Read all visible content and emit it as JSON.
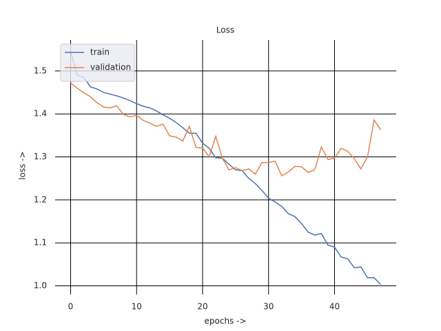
{
  "chart_data": {
    "type": "line",
    "title": "Loss",
    "x_label": "epochs ->",
    "y_label": "loss ->",
    "x": [
      0,
      1,
      2,
      3,
      4,
      5,
      6,
      7,
      8,
      9,
      10,
      11,
      12,
      13,
      14,
      15,
      16,
      17,
      18,
      19,
      20,
      21,
      22,
      23,
      24,
      25,
      26,
      27,
      28,
      29,
      30,
      31,
      32,
      33,
      34,
      35,
      36,
      37,
      38,
      39,
      40,
      41,
      42,
      43,
      44,
      45,
      46,
      47
    ],
    "series": [
      {
        "name": "train",
        "color": "#4c72b0",
        "values": [
          1.545,
          1.49,
          1.485,
          1.463,
          1.458,
          1.45,
          1.446,
          1.442,
          1.437,
          1.431,
          1.424,
          1.418,
          1.414,
          1.407,
          1.398,
          1.39,
          1.38,
          1.368,
          1.355,
          1.355,
          1.332,
          1.32,
          1.298,
          1.297,
          1.283,
          1.27,
          1.268,
          1.25,
          1.238,
          1.222,
          1.204,
          1.195,
          1.185,
          1.168,
          1.161,
          1.145,
          1.125,
          1.118,
          1.122,
          1.095,
          1.09,
          1.067,
          1.063,
          1.042,
          1.044,
          1.019,
          1.019,
          1.003
        ]
      },
      {
        "name": "validation",
        "color": "#dd8452",
        "values": [
          1.472,
          1.46,
          1.449,
          1.44,
          1.426,
          1.416,
          1.414,
          1.419,
          1.399,
          1.393,
          1.397,
          1.385,
          1.379,
          1.371,
          1.376,
          1.349,
          1.346,
          1.337,
          1.371,
          1.322,
          1.321,
          1.3,
          1.348,
          1.297,
          1.27,
          1.275,
          1.268,
          1.272,
          1.26,
          1.287,
          1.287,
          1.29,
          1.256,
          1.265,
          1.278,
          1.277,
          1.264,
          1.27,
          1.323,
          1.294,
          1.297,
          1.32,
          1.313,
          1.296,
          1.272,
          1.3,
          1.386,
          1.363
        ]
      }
    ],
    "xlim": [
      -2.35,
      49.35
    ],
    "ylim": [
      0.98,
      1.572
    ],
    "xticks": [
      0,
      10,
      20,
      30,
      40
    ],
    "yticks": [
      {
        "value": 1,
        "label": "1.0"
      },
      1.1,
      1.2,
      1.3,
      1.4,
      1.5
    ],
    "grid": true,
    "legend": "upper left"
  }
}
